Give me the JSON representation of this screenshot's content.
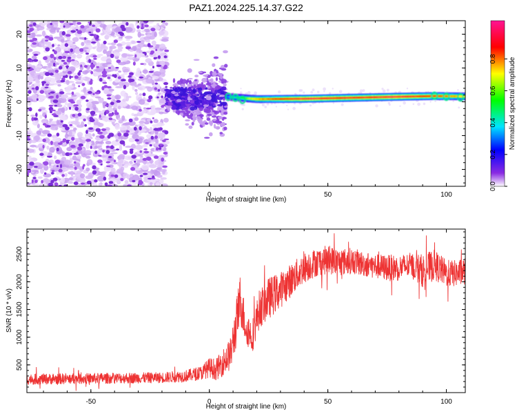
{
  "title": "PAZ1.2024.225.14.37.G22",
  "chart_data": [
    {
      "type": "heatmap",
      "xlabel": "Height of straight line (km)",
      "ylabel": "Frequency (Hz)",
      "xlim": [
        -77,
        108
      ],
      "ylim": [
        -25,
        24
      ],
      "x_ticks": [
        -50,
        0,
        50,
        100
      ],
      "y_ticks": [
        -20,
        -10,
        0,
        10,
        20
      ],
      "x_tick_labels": [
        "-50",
        "0",
        "50",
        "100"
      ],
      "y_tick_labels": [
        "-20",
        "-10",
        "0",
        "10",
        "20"
      ],
      "colorbar": {
        "label": "Normalized spectral amplitude",
        "range": [
          0,
          1
        ],
        "ticks": [
          0.0,
          0.2,
          0.4,
          0.6,
          0.8
        ],
        "tick_labels": [
          "0.0",
          "0.2",
          "0.4",
          "0.6",
          "0.8"
        ],
        "colors": [
          "#ffffff",
          "#8a2be2",
          "#0000ff",
          "#00e5ff",
          "#00ff00",
          "#ffff00",
          "#ff0000",
          "#ff1493"
        ]
      },
      "noise_region_x": [
        -77,
        -18
      ],
      "transition_region_x": [
        -18,
        7
      ],
      "signal_line": {
        "x": [
          7,
          20,
          40,
          60,
          80,
          95,
          108
        ],
        "frequency": [
          1.5,
          0.8,
          0.9,
          1.2,
          1.5,
          1.7,
          1.6
        ],
        "amplitude": [
          0.3,
          0.75,
          0.95,
          0.9,
          0.95,
          0.85,
          0.7
        ]
      }
    },
    {
      "type": "line",
      "xlabel": "Height of straight line (km)",
      "ylabel": "SNR (10 * v/v)",
      "xlim": [
        -77,
        108
      ],
      "ylim": [
        0,
        2950
      ],
      "x_ticks": [
        -50,
        0,
        50,
        100
      ],
      "y_ticks": [
        500,
        1000,
        1500,
        2000,
        2500
      ],
      "x_tick_labels": [
        "-50",
        "0",
        "50",
        "100"
      ],
      "y_tick_labels": [
        "500",
        "1000",
        "1500",
        "2000",
        "2500"
      ],
      "color": "#ee3333",
      "series": [
        {
          "x": [
            -77,
            -60,
            -40,
            -20,
            -10,
            -3,
            0,
            3,
            6,
            9,
            11,
            13,
            15,
            18,
            21,
            25,
            30,
            35,
            40,
            45,
            50,
            55,
            60,
            65,
            70,
            75,
            80,
            85,
            90,
            95,
            100,
            105,
            108
          ],
          "values": [
            240,
            250,
            260,
            270,
            300,
            360,
            450,
            420,
            560,
            700,
            1150,
            1700,
            1250,
            1000,
            1500,
            1700,
            1850,
            2050,
            2250,
            2350,
            2400,
            2350,
            2380,
            2320,
            2280,
            2250,
            2250,
            2300,
            2200,
            2300,
            2150,
            2150,
            2200
          ],
          "noise_amplitude": [
            100,
            100,
            100,
            100,
            110,
            130,
            180,
            200,
            250,
            300,
            420,
            450,
            350,
            300,
            350,
            380,
            330,
            300,
            280,
            260,
            260,
            250,
            240,
            230,
            230,
            240,
            240,
            230,
            300,
            280,
            250,
            240,
            250
          ]
        }
      ]
    }
  ]
}
